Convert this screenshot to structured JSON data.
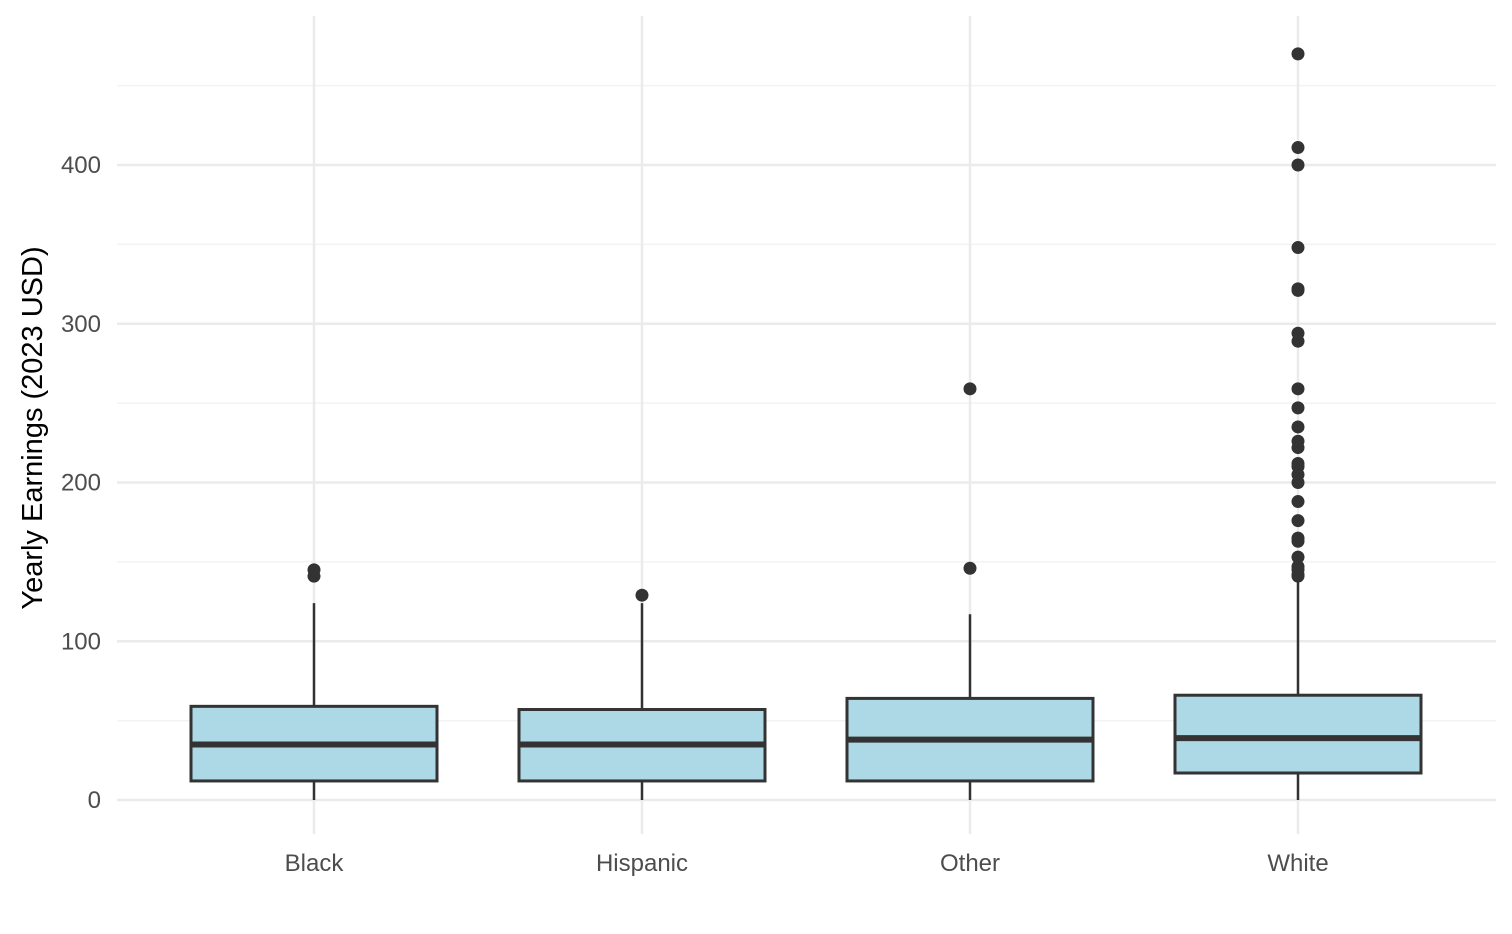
{
  "chart_data": {
    "type": "boxplot",
    "title": "",
    "xlabel": "",
    "ylabel": "Yearly Earnings (2023 USD)",
    "ylim": [
      -20,
      480
    ],
    "y_ticks": [
      0,
      100,
      200,
      300,
      400
    ],
    "y_tick_labels": [
      "0",
      "100",
      "200",
      "300",
      "400"
    ],
    "y_minor_ticks": [
      50,
      150,
      250,
      350,
      450
    ],
    "grid": true,
    "legend": "none",
    "categories": [
      "Black",
      "Hispanic",
      "Other",
      "White"
    ],
    "boxes": [
      {
        "category": "Black",
        "whisker_low": 0,
        "q1": 12,
        "median": 35,
        "q3": 59,
        "whisker_high": 124,
        "outliers": [
          141,
          145
        ]
      },
      {
        "category": "Hispanic",
        "whisker_low": 0,
        "q1": 12,
        "median": 35,
        "q3": 57,
        "whisker_high": 124,
        "outliers": [
          129
        ]
      },
      {
        "category": "Other",
        "whisker_low": 0,
        "q1": 12,
        "median": 38,
        "q3": 64,
        "whisker_high": 117,
        "outliers": [
          146,
          259
        ]
      },
      {
        "category": "White",
        "whisker_low": 0,
        "q1": 17,
        "median": 39,
        "q3": 66,
        "whisker_high": 140,
        "outliers": [
          141,
          142,
          145,
          147,
          153,
          163,
          165,
          176,
          188,
          200,
          205,
          210,
          212,
          222,
          226,
          235,
          247,
          259,
          289,
          294,
          321,
          322,
          348,
          400,
          411,
          470
        ]
      }
    ]
  },
  "colors": {
    "box_fill": "#add8e6",
    "box_stroke": "#333333",
    "grid_major": "#ebebeb",
    "grid_minor": "#f3f3f3",
    "tick_text": "#4d4d4d"
  }
}
